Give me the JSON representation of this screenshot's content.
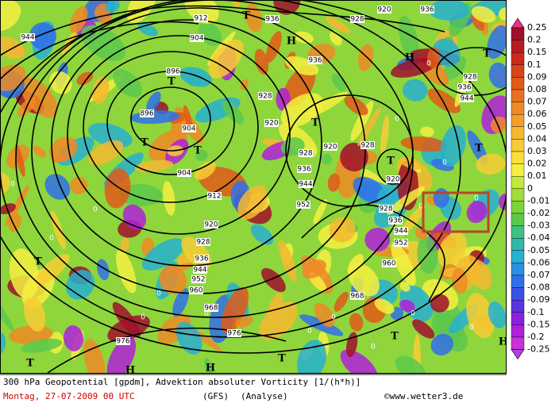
{
  "map": {
    "contour_labels": [
      "944",
      "904",
      "912",
      "896",
      "896",
      "904",
      "904",
      "912",
      "920",
      "928",
      "936",
      "944",
      "952",
      "960",
      "968",
      "976",
      "976",
      "968",
      "960",
      "952",
      "944",
      "936",
      "928",
      "920",
      "928",
      "920",
      "928",
      "936",
      "944",
      "952",
      "920",
      "928",
      "936",
      "928",
      "936",
      "936",
      "928",
      "936",
      "944",
      "920"
    ],
    "zero_labels": [
      "0",
      "0",
      "0",
      "0",
      "0",
      "0",
      "0",
      "0",
      "0",
      "0",
      "0",
      "0",
      "0",
      "0",
      "0",
      "0"
    ],
    "high_markers": [
      "H",
      "H",
      "H",
      "H",
      "H"
    ],
    "low_markers": [
      "T",
      "T",
      "T",
      "T",
      "T",
      "T",
      "T",
      "T",
      "T",
      "T",
      "T",
      "T"
    ]
  },
  "legend": {
    "levels": [
      0.25,
      0.2,
      0.15,
      0.1,
      0.09,
      0.08,
      0.07,
      0.06,
      0.05,
      0.04,
      0.03,
      0.02,
      0.01,
      0,
      -0.01,
      -0.02,
      -0.03,
      -0.04,
      -0.05,
      -0.06,
      -0.07,
      -0.08,
      -0.09,
      -0.1,
      -0.15,
      -0.2,
      -0.25
    ],
    "colors": [
      "#e8308a",
      "#a0102a",
      "#b81c20",
      "#cc2a18",
      "#d84418",
      "#e05a18",
      "#e87020",
      "#ee8a26",
      "#f2a02c",
      "#f6b830",
      "#f8cc34",
      "#f8e038",
      "#f4f040",
      "#c4e83c",
      "#a0dc3a",
      "#7cd23a",
      "#5cc84c",
      "#40c080",
      "#30b8a8",
      "#28b0d0",
      "#2c90e0",
      "#3070e8",
      "#3c50e8",
      "#5a34e0",
      "#8a20e0",
      "#b020d8",
      "#c832d8",
      "#b040e0"
    ]
  },
  "footer": {
    "line1": "300 hPa Geopotential [gpdm], Advektion absoluter Vorticity [1/(h*h)]",
    "date": "Montag, 27-07-2009  00 UTC",
    "model": "(GFS)",
    "run": "(Analyse)",
    "credit": "©www.wetter3.de"
  }
}
